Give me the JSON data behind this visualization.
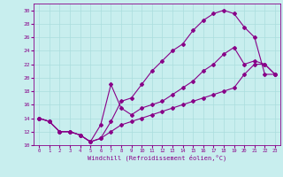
{
  "xlabel": "Windchill (Refroidissement éolien,°C)",
  "bg_color": "#c8eeee",
  "grid_color": "#aadddd",
  "line_color": "#880088",
  "xlim": [
    -0.5,
    23.5
  ],
  "ylim": [
    10,
    31
  ],
  "xticks": [
    0,
    1,
    2,
    3,
    4,
    5,
    6,
    7,
    8,
    9,
    10,
    11,
    12,
    13,
    14,
    15,
    16,
    17,
    18,
    19,
    20,
    21,
    22,
    23
  ],
  "yticks": [
    10,
    12,
    14,
    16,
    18,
    20,
    22,
    24,
    26,
    28,
    30
  ],
  "line1_x": [
    0,
    1,
    2,
    3,
    4,
    5,
    6,
    7,
    8,
    9,
    10,
    11,
    12,
    13,
    14,
    15,
    16,
    17,
    18,
    19,
    20,
    21,
    22,
    23
  ],
  "line1_y": [
    14.0,
    13.5,
    12.0,
    12.0,
    11.5,
    10.5,
    11.0,
    13.5,
    16.5,
    17.0,
    19.0,
    21.0,
    22.5,
    24.0,
    25.0,
    27.0,
    28.5,
    29.5,
    30.0,
    29.5,
    27.5,
    26.0,
    20.5,
    20.5
  ],
  "line2_x": [
    0,
    1,
    2,
    3,
    4,
    5,
    6,
    7,
    8,
    9,
    10,
    11,
    12,
    13,
    14,
    15,
    16,
    17,
    18,
    19,
    20,
    21,
    22,
    23
  ],
  "line2_y": [
    14.0,
    13.5,
    12.0,
    12.0,
    11.5,
    10.5,
    11.0,
    12.0,
    13.0,
    13.5,
    14.0,
    14.5,
    15.0,
    15.5,
    16.0,
    16.5,
    17.0,
    17.5,
    18.0,
    18.5,
    20.5,
    22.0,
    22.0,
    20.5
  ],
  "line3_x": [
    0,
    1,
    2,
    3,
    4,
    5,
    6,
    7,
    8,
    9,
    10,
    11,
    12,
    13,
    14,
    15,
    16,
    17,
    18,
    19,
    20,
    21,
    22,
    23
  ],
  "line3_y": [
    14.0,
    13.5,
    12.0,
    12.0,
    11.5,
    10.5,
    13.0,
    19.0,
    15.5,
    14.5,
    15.5,
    16.0,
    16.5,
    17.5,
    18.5,
    19.5,
    21.0,
    22.0,
    23.5,
    24.5,
    22.0,
    22.5,
    22.0,
    20.5
  ],
  "markersize": 2.0,
  "linewidth": 0.8
}
